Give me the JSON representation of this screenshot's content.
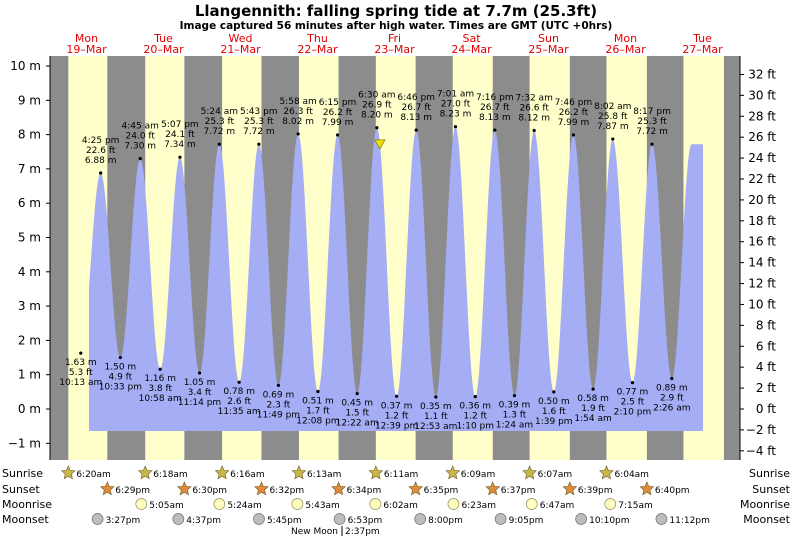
{
  "title": "Llangennith: falling  spring tide at 7.7m (25.3ft)",
  "subtitle": "Image captured 56 minutes after high water. Times are GMT (UTC +0hrs)",
  "colors": {
    "night": "#8c8c8c",
    "day": "#ffffcc",
    "water": "#a5adf5",
    "day_label": "#e00000",
    "sun_icon": "#c8b84a",
    "sunset_icon": "#e08a3c",
    "moonrise_icon": "#ffffc0",
    "moonset_icon": "#bdbdbd",
    "now_marker": "#f0e000"
  },
  "days": [
    {
      "name": "Mon",
      "date": "19–Mar"
    },
    {
      "name": "Tue",
      "date": "20–Mar"
    },
    {
      "name": "Wed",
      "date": "21–Mar"
    },
    {
      "name": "Thu",
      "date": "22–Mar"
    },
    {
      "name": "Fri",
      "date": "23–Mar"
    },
    {
      "name": "Sat",
      "date": "24–Mar"
    },
    {
      "name": "Sun",
      "date": "25–Mar"
    },
    {
      "name": "Mon",
      "date": "26–Mar"
    },
    {
      "name": "Tue",
      "date": "27–Mar"
    }
  ],
  "chart_data": {
    "type": "area",
    "title": "Llangennith: falling  spring tide at 7.7m (25.3ft)",
    "ylim_m": [
      -1.4,
      10.2
    ],
    "y_ticks_m": [
      "10 m",
      "9 m",
      "8 m",
      "7 m",
      "6 m",
      "5 m",
      "4 m",
      "3 m",
      "2 m",
      "1 m",
      "0 m",
      "−1 m"
    ],
    "y_ticks_ft": [
      "32 ft",
      "30 ft",
      "28 ft",
      "26 ft",
      "24 ft",
      "22 ft",
      "20 ft",
      "18 ft",
      "16 ft",
      "14 ft",
      "12 ft",
      "10 ft",
      "8 ft",
      "6 ft",
      "4 ft",
      "2 ft",
      "0 ft",
      "−2 ft",
      "−4 ft"
    ],
    "grid": false,
    "tides": [
      {
        "time": "10:13 am",
        "feet": "5.3 ft",
        "meters": "1.63 m",
        "value": 1.63,
        "kind": "low",
        "day": 0
      },
      {
        "time": "4:25 pm",
        "feet": "22.6 ft",
        "meters": "6.88 m",
        "value": 6.88,
        "kind": "high",
        "day": 0
      },
      {
        "time": "10:33 pm",
        "feet": "4.9 ft",
        "meters": "1.50 m",
        "value": 1.5,
        "kind": "low",
        "day": 0
      },
      {
        "time": "4:45 am",
        "feet": "24.0 ft",
        "meters": "7.30 m",
        "value": 7.3,
        "kind": "high",
        "day": 1
      },
      {
        "time": "10:58 am",
        "feet": "3.8 ft",
        "meters": "1.16 m",
        "value": 1.16,
        "kind": "low",
        "day": 1
      },
      {
        "time": "5:07 pm",
        "feet": "24.1 ft",
        "meters": "7.34 m",
        "value": 7.34,
        "kind": "high",
        "day": 1
      },
      {
        "time": "11:14 pm",
        "feet": "3.4 ft",
        "meters": "1.05 m",
        "value": 1.05,
        "kind": "low",
        "day": 1
      },
      {
        "time": "5:24 am",
        "feet": "25.3 ft",
        "meters": "7.72 m",
        "value": 7.72,
        "kind": "high",
        "day": 2
      },
      {
        "time": "11:35 am",
        "feet": "2.6 ft",
        "meters": "0.78 m",
        "value": 0.78,
        "kind": "low",
        "day": 2
      },
      {
        "time": "5:43 pm",
        "feet": "25.3 ft",
        "meters": "7.72 m",
        "value": 7.72,
        "kind": "high",
        "day": 2
      },
      {
        "time": "11:49 pm",
        "feet": "2.3 ft",
        "meters": "0.69 m",
        "value": 0.69,
        "kind": "low",
        "day": 2
      },
      {
        "time": "5:58 am",
        "feet": "26.3 ft",
        "meters": "8.02 m",
        "value": 8.02,
        "kind": "high",
        "day": 3
      },
      {
        "time": "12:08 pm",
        "feet": "1.7 ft",
        "meters": "0.51 m",
        "value": 0.51,
        "kind": "low",
        "day": 3
      },
      {
        "time": "6:15 pm",
        "feet": "26.2 ft",
        "meters": "7.99 m",
        "value": 7.99,
        "kind": "high",
        "day": 3
      },
      {
        "time": "12:22 am",
        "feet": "1.5 ft",
        "meters": "0.45 m",
        "value": 0.45,
        "kind": "low",
        "day": 4
      },
      {
        "time": "6:30 am",
        "feet": "26.9 ft",
        "meters": "8.20 m",
        "value": 8.2,
        "kind": "high",
        "day": 4
      },
      {
        "time": "12:39 pm",
        "feet": "1.2 ft",
        "meters": "0.37 m",
        "value": 0.37,
        "kind": "low",
        "day": 4
      },
      {
        "time": "6:46 pm",
        "feet": "26.7 ft",
        "meters": "8.13 m",
        "value": 8.13,
        "kind": "high",
        "day": 4
      },
      {
        "time": "12:53 am",
        "feet": "1.1 ft",
        "meters": "0.35 m",
        "value": 0.35,
        "kind": "low",
        "day": 5
      },
      {
        "time": "7:01 am",
        "feet": "27.0 ft",
        "meters": "8.23 m",
        "value": 8.23,
        "kind": "high",
        "day": 5
      },
      {
        "time": "1:10 pm",
        "feet": "1.2 ft",
        "meters": "0.36 m",
        "value": 0.36,
        "kind": "low",
        "day": 5
      },
      {
        "time": "7:16 pm",
        "feet": "26.7 ft",
        "meters": "8.13 m",
        "value": 8.13,
        "kind": "high",
        "day": 5
      },
      {
        "time": "1:24 am",
        "feet": "1.3 ft",
        "meters": "0.39 m",
        "value": 0.39,
        "kind": "low",
        "day": 6
      },
      {
        "time": "7:32 am",
        "feet": "26.6 ft",
        "meters": "8.12 m",
        "value": 8.12,
        "kind": "high",
        "day": 6
      },
      {
        "time": "1:39 pm",
        "feet": "1.6 ft",
        "meters": "0.50 m",
        "value": 0.5,
        "kind": "low",
        "day": 6
      },
      {
        "time": "7:46 pm",
        "feet": "26.2 ft",
        "meters": "7.99 m",
        "value": 7.99,
        "kind": "high",
        "day": 6
      },
      {
        "time": "1:54 am",
        "feet": "1.9 ft",
        "meters": "0.58 m",
        "value": 0.58,
        "kind": "low",
        "day": 7
      },
      {
        "time": "8:02 am",
        "feet": "25.8 ft",
        "meters": "7.87 m",
        "value": 7.87,
        "kind": "high",
        "day": 7
      },
      {
        "time": "2:10 pm",
        "feet": "2.5 ft",
        "meters": "0.77 m",
        "value": 0.77,
        "kind": "low",
        "day": 7
      },
      {
        "time": "8:17 pm",
        "feet": "25.3 ft",
        "meters": "7.72 m",
        "value": 7.72,
        "kind": "high",
        "day": 7
      },
      {
        "time": "2:26 am",
        "feet": "2.9 ft",
        "meters": "0.89 m",
        "value": 0.89,
        "kind": "low",
        "day": 8
      }
    ]
  },
  "astro": {
    "labels": {
      "sunrise": "Sunrise",
      "sunset": "Sunset",
      "moonrise": "Moonrise",
      "moonset": "Moonset"
    },
    "sunrise": [
      "6:20am",
      "6:18am",
      "6:16am",
      "6:13am",
      "6:11am",
      "6:09am",
      "6:07am",
      "6:04am"
    ],
    "sunset": [
      "6:29pm",
      "6:30pm",
      "6:32pm",
      "6:34pm",
      "6:35pm",
      "6:37pm",
      "6:39pm",
      "6:40pm"
    ],
    "moonrise": [
      "5:05am",
      "5:24am",
      "5:43am",
      "6:02am",
      "6:23am",
      "6:47am",
      "7:15am"
    ],
    "moonset": [
      "3:27pm",
      "4:37pm",
      "5:45pm",
      "6:53pm",
      "8:00pm",
      "9:05pm",
      "10:10pm",
      "11:12pm"
    ],
    "moon_phase": "New Moon",
    "moon_phase_time": "2:37pm"
  }
}
